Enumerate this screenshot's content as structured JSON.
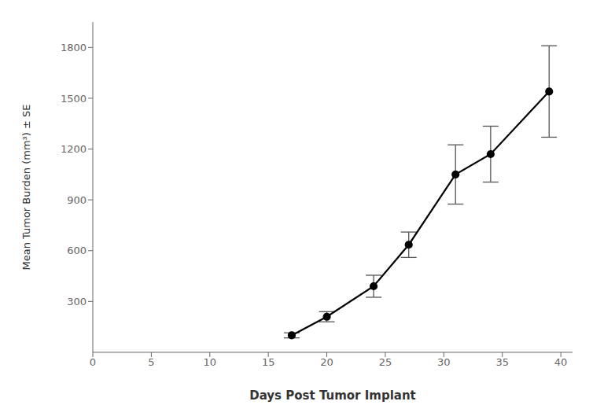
{
  "chart_data": {
    "type": "line",
    "x": [
      17,
      20,
      24,
      27,
      31,
      34,
      39
    ],
    "values": [
      100,
      210,
      390,
      635,
      1050,
      1170,
      1540
    ],
    "yerr": [
      15,
      30,
      65,
      75,
      175,
      165,
      270
    ],
    "xlabel": "Days Post Tumor Implant",
    "ylabel": "Mean Tumor Burden (mm³) ± SE",
    "xlim": [
      0,
      41
    ],
    "ylim": [
      0,
      1950
    ],
    "xticks": [
      0,
      5,
      10,
      15,
      20,
      25,
      30,
      35,
      40
    ],
    "yticks": [
      300,
      600,
      900,
      1200,
      1500,
      1800
    ],
    "color": "#000000",
    "marker": "circle",
    "grid": false
  }
}
